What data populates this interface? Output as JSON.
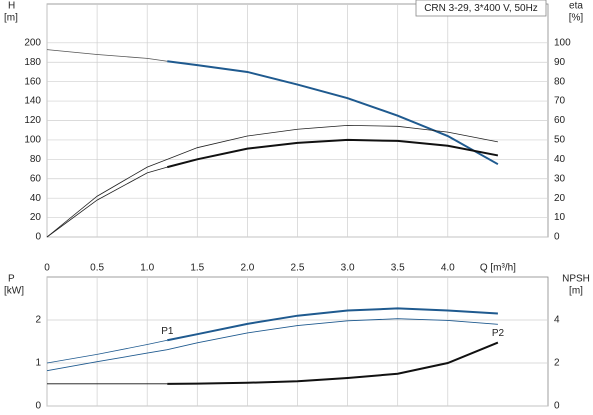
{
  "chart_data": [
    {
      "type": "line",
      "title": "CRN 3-29, 3*400 V, 50Hz",
      "ylabel": "H",
      "yunit": "[m]",
      "y2label": "eta",
      "y2unit": "[%]",
      "xlabel": "Q [m³/h]",
      "xlim": [
        0,
        5
      ],
      "xticks": [
        0,
        0.5,
        {
          "value": 1,
          "label": "1.0"
        },
        1.5,
        {
          "value": 2,
          "label": "2.0"
        },
        2.5,
        {
          "value": 3,
          "label": "3.0"
        },
        3.5,
        {
          "value": 4,
          "label": "4.0"
        }
      ],
      "show_xtick_labels": true,
      "ylim": [
        0,
        240
      ],
      "yticks": [
        0,
        20,
        40,
        60,
        80,
        100,
        120,
        140,
        160,
        180,
        200
      ],
      "y2lim": [
        0,
        120
      ],
      "y2ticks": [
        0,
        10,
        20,
        30,
        40,
        50,
        60,
        70,
        80,
        90,
        100
      ],
      "grid": true,
      "x": [
        0,
        0.5,
        1,
        1.2,
        1.5,
        2,
        2.5,
        3,
        3.5,
        4,
        4.5
      ],
      "series": [
        {
          "color": "#555555",
          "width": 0.8,
          "values": [
            193,
            188,
            184,
            181,
            null,
            null,
            null,
            null,
            null,
            null,
            null
          ]
        },
        {
          "color": "#1f5a8f",
          "width": 2,
          "values": [
            null,
            null,
            null,
            181,
            177,
            170,
            157,
            143,
            125,
            104,
            75
          ]
        },
        {
          "color": "#222222",
          "width": 0.8,
          "axis": "y2",
          "values": [
            0,
            21,
            36,
            40,
            46,
            52,
            55.5,
            57.5,
            57,
            54,
            49
          ]
        },
        {
          "color": "#222222",
          "width": 0.8,
          "axis": "y2",
          "values": [
            0,
            19,
            33,
            36,
            null,
            null,
            null,
            null,
            null,
            null,
            null
          ]
        },
        {
          "color": "#111111",
          "width": 2,
          "axis": "y2",
          "values": [
            null,
            null,
            null,
            36,
            40,
            45.5,
            48.5,
            50,
            49.5,
            47,
            42
          ]
        }
      ]
    },
    {
      "type": "line",
      "ylabel": "P",
      "yunit": "[kW]",
      "y2label": "NPSH",
      "y2unit": "[m]",
      "xlim": [
        0,
        5
      ],
      "xticks": [
        0,
        0.5,
        1,
        1.5,
        2,
        2.5,
        3,
        3.5,
        4
      ],
      "show_xtick_labels": false,
      "ylim": [
        0,
        3
      ],
      "yticks": [
        0,
        1,
        2
      ],
      "y2lim": [
        0,
        6
      ],
      "y2ticks": [
        0,
        2,
        4
      ],
      "grid": true,
      "x": [
        0,
        0.5,
        1,
        1.2,
        1.5,
        2,
        2.5,
        3,
        3.5,
        4,
        4.5
      ],
      "series": [
        {
          "name": "P1",
          "color": "#1f5a8f",
          "width": 0.8,
          "values": [
            1.0,
            1.2,
            1.43,
            1.53,
            null,
            null,
            null,
            null,
            null,
            null,
            null
          ]
        },
        {
          "color": "#1f5a8f",
          "width": 2,
          "values": [
            null,
            null,
            null,
            1.53,
            1.67,
            1.91,
            2.1,
            2.22,
            2.27,
            2.22,
            2.15
          ]
        },
        {
          "name": "P2",
          "color": "#1f5a8f",
          "width": 0.9,
          "values": [
            0.82,
            1.03,
            1.23,
            1.31,
            1.47,
            1.7,
            1.87,
            1.98,
            2.03,
            1.99,
            1.9
          ]
        },
        {
          "color": "#111111",
          "width": 0.9,
          "axis": "y2",
          "values": [
            1.03,
            1.03,
            1.03,
            1.03,
            null,
            null,
            null,
            null,
            null,
            null,
            null
          ]
        },
        {
          "color": "#111111",
          "width": 2,
          "axis": "y2",
          "values": [
            null,
            null,
            null,
            1.03,
            1.04,
            1.08,
            1.15,
            1.3,
            1.5,
            2.0,
            2.95
          ]
        }
      ]
    }
  ]
}
